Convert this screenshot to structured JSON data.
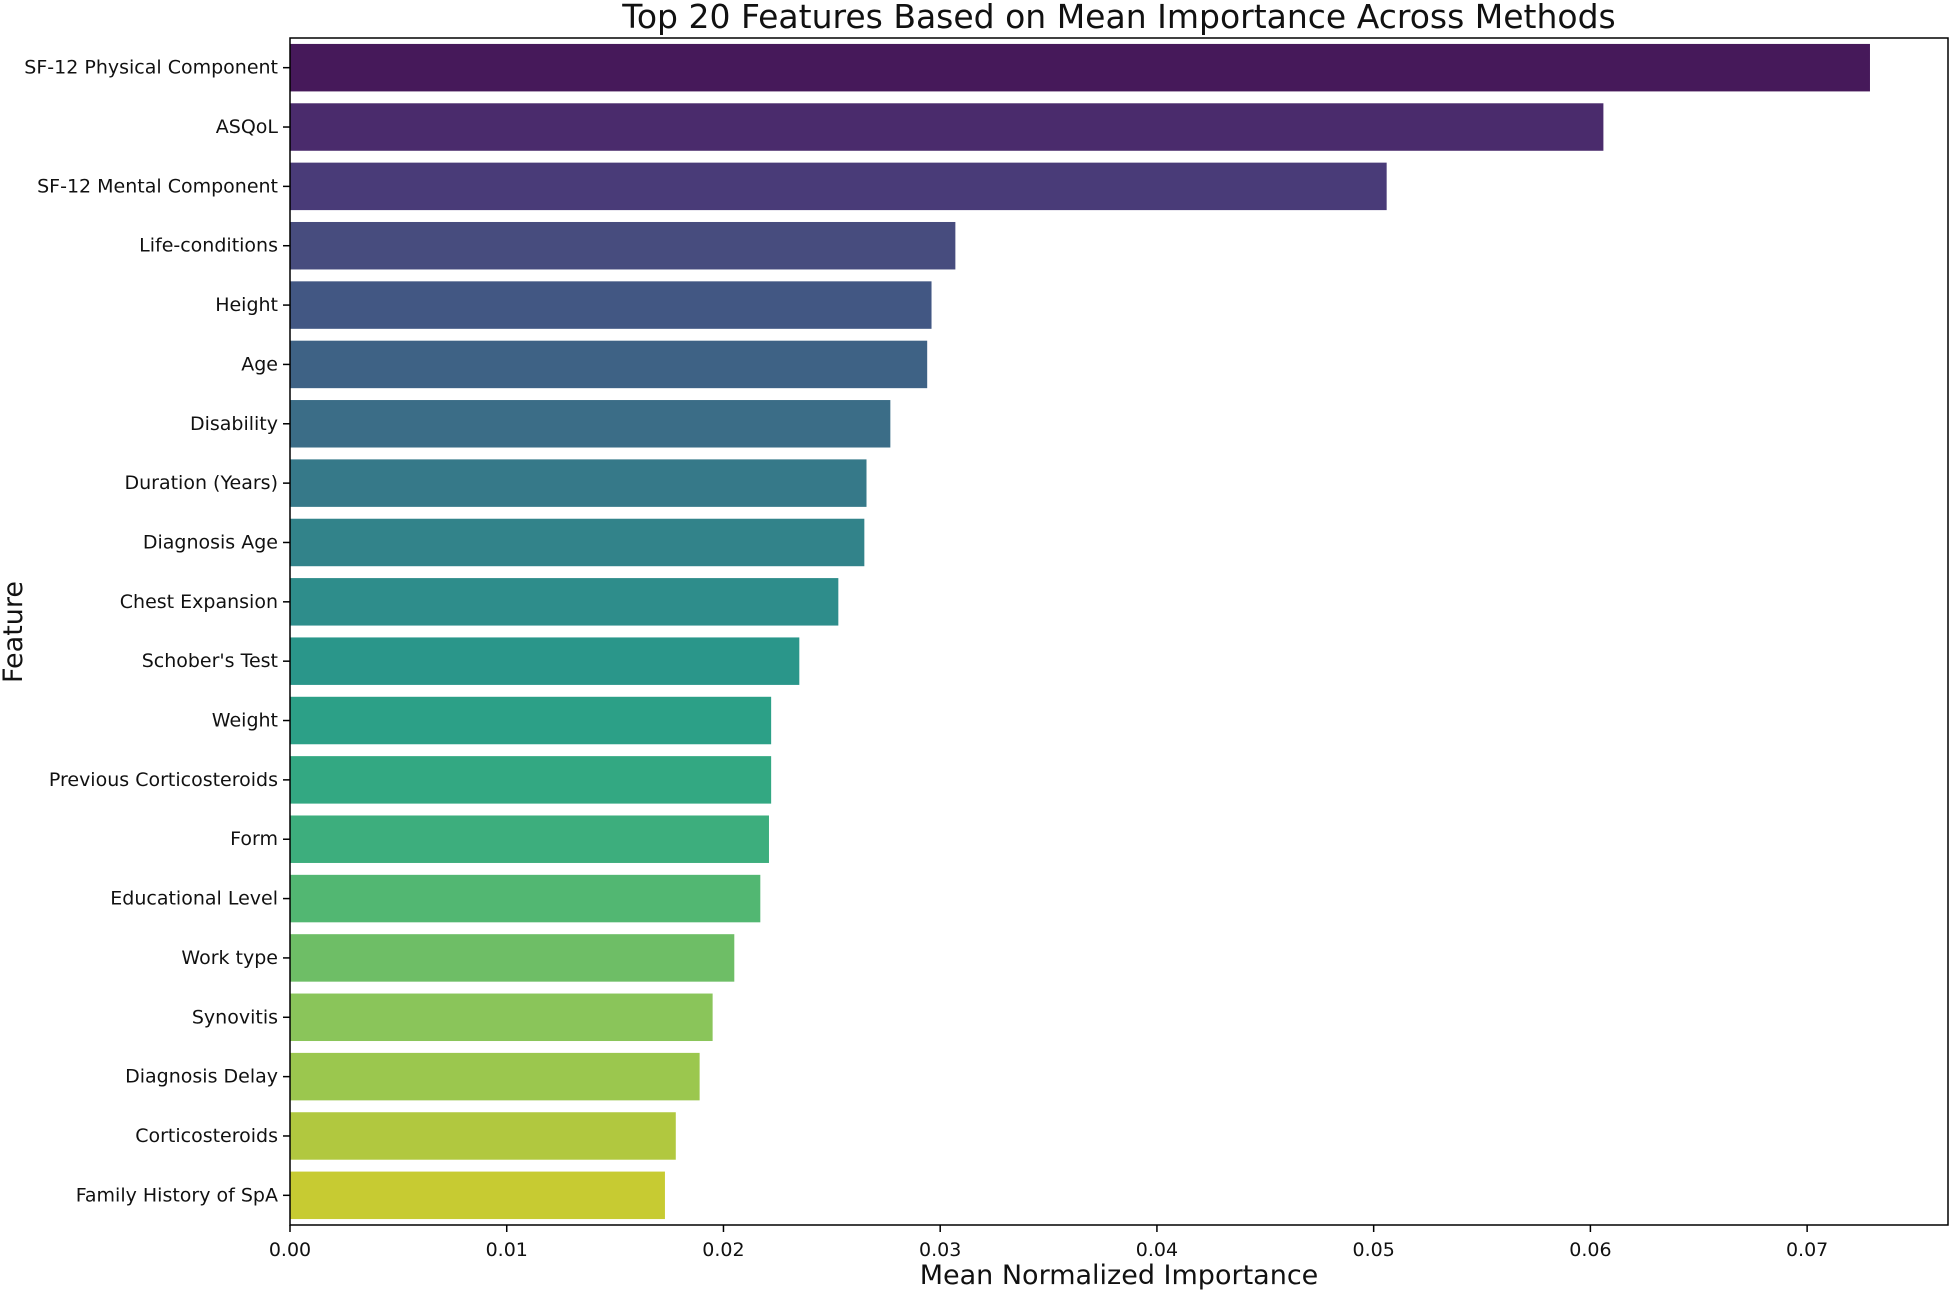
{
  "chart_data": {
    "type": "bar",
    "orientation": "horizontal",
    "title": "Top 20 Features Based on Mean Importance Across Methods",
    "xlabel": "Mean Normalized Importance",
    "ylabel": "Feature",
    "xlim": [
      0,
      0.0765
    ],
    "xticks": [
      "0.00",
      "0.01",
      "0.02",
      "0.03",
      "0.04",
      "0.05",
      "0.06",
      "0.07"
    ],
    "grid": false,
    "legend": "none",
    "colormap": "viridis",
    "categories": [
      "SF-12 Physical Component",
      "ASQoL",
      "SF-12 Mental Component",
      "Life-conditions",
      "Height",
      "Age",
      "Disability",
      "Duration (Years)",
      "Diagnosis Age",
      "Chest Expansion",
      "Schober's Test",
      "Weight",
      "Previous Corticosteroids",
      "Form",
      "Educational Level",
      "Work type",
      "Synovitis",
      "Diagnosis Delay",
      "Corticosteroids",
      "Family History of SpA"
    ],
    "values": [
      0.0729,
      0.0606,
      0.0506,
      0.0307,
      0.0296,
      0.0294,
      0.0277,
      0.0266,
      0.0265,
      0.0253,
      0.0235,
      0.0222,
      0.0222,
      0.0221,
      0.0217,
      0.0205,
      0.0195,
      0.0189,
      0.0178,
      0.0173
    ],
    "colors": [
      "#46195a",
      "#4a2b6c",
      "#493b78",
      "#474c7e",
      "#425783",
      "#3e6285",
      "#3b6d87",
      "#367989",
      "#32838a",
      "#2e8d8b",
      "#2a968a",
      "#2ca087",
      "#33a882",
      "#3dae7d",
      "#52b772",
      "#6ebe66",
      "#8ac55a",
      "#9bc74e",
      "#b1c83f",
      "#c7cb32"
    ]
  }
}
